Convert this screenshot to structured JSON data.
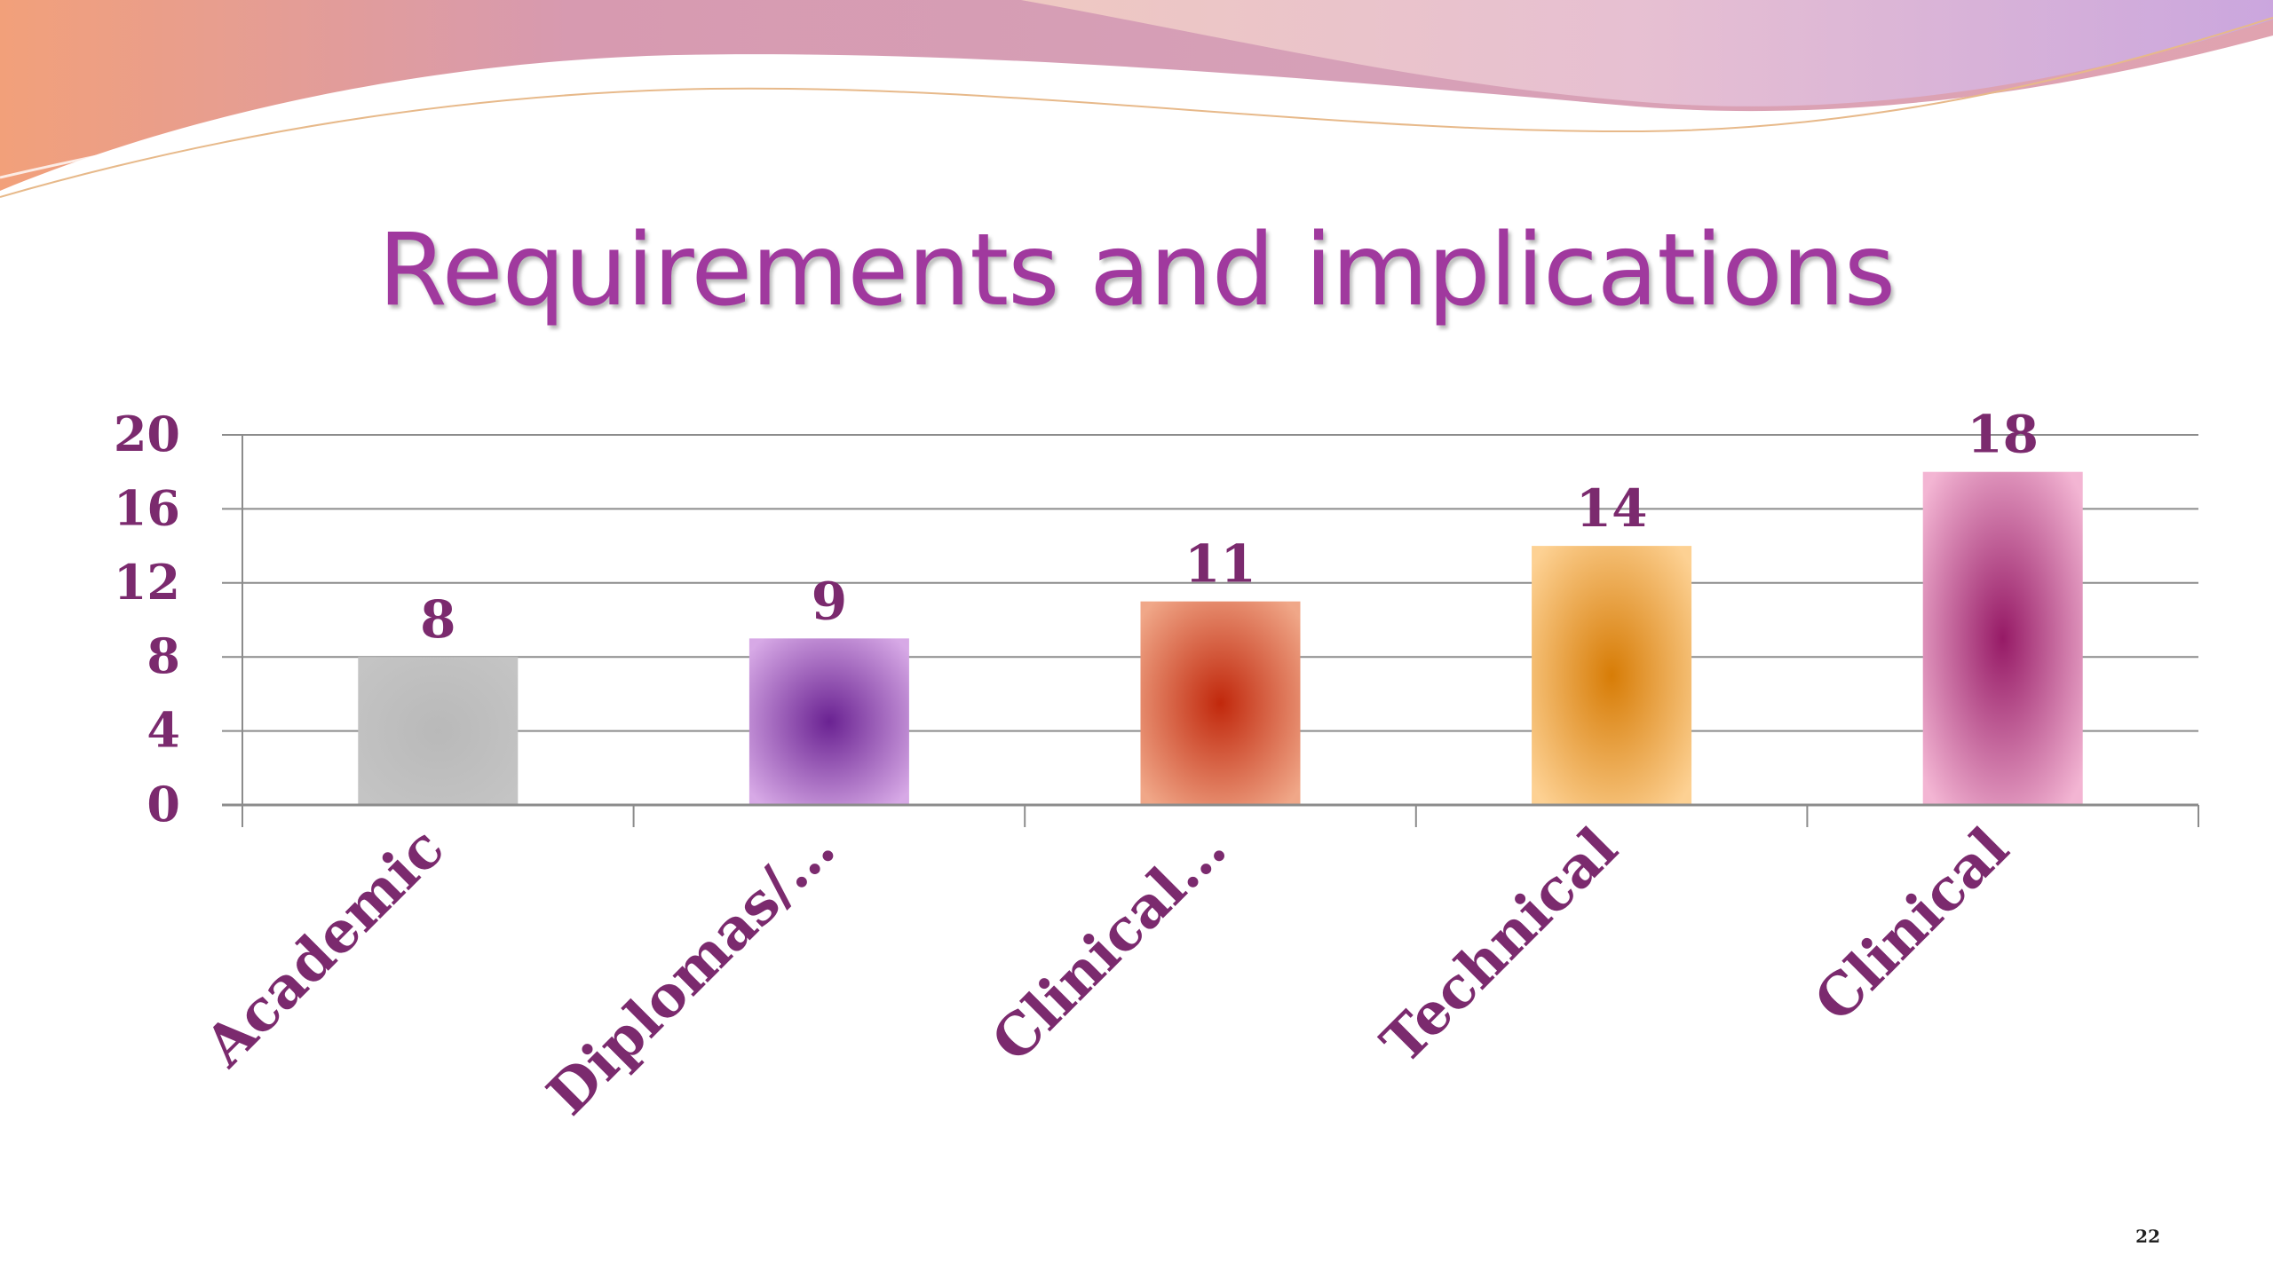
{
  "slide": {
    "title": "Requirements and implications",
    "page_number": "22"
  },
  "colors": {
    "title": "#a0399e",
    "label_text": "#7b2a6e",
    "gridline": "#8c8c8c"
  },
  "chart_data": {
    "type": "bar",
    "categories": [
      "Academic",
      "Diplomas/…",
      "Clinical…",
      "Technical",
      "Clinical"
    ],
    "values": [
      8,
      9,
      11,
      14,
      18
    ],
    "data_labels": [
      "8",
      "9",
      "11",
      "14",
      "18"
    ],
    "ylim": [
      0,
      20
    ],
    "yticks": [
      0,
      4,
      8,
      12,
      16,
      20
    ],
    "grid": true,
    "legend": "none",
    "bar_colors": [
      {
        "center": "#b9b9b9",
        "edge": "#c4c4c4"
      },
      {
        "center": "#6a2292",
        "edge": "#d7a9e6"
      },
      {
        "center": "#c1280c",
        "edge": "#f0a788"
      },
      {
        "center": "#d77c06",
        "edge": "#fdd193"
      },
      {
        "center": "#961a66",
        "edge": "#f3b5d3"
      }
    ]
  }
}
